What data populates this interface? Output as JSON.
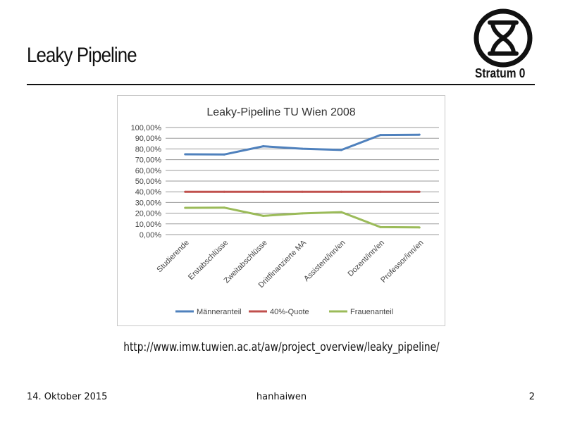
{
  "slide": {
    "title": "Leaky Pipeline",
    "url": "http://www.imw.tuwien.ac.at/aw/project_overview/leaky_pipeline/"
  },
  "logo": {
    "text": "Stratum 0"
  },
  "footer": {
    "date": "14. Oktober 2015",
    "author": "hanhaiwen",
    "page": "2"
  },
  "chart_data": {
    "type": "line",
    "title": "Leaky-Pipeline TU Wien 2008",
    "categories": [
      "Studierende",
      "Erstabschlüsse",
      "Zweitabschlüsse",
      "Drittfinanzierte MA",
      "Assistent/inn/en",
      "Dozent/inn/en",
      "Professor/inn/en"
    ],
    "y_ticks": [
      "0,00%",
      "10,00%",
      "20,00%",
      "30,00%",
      "40,00%",
      "50,00%",
      "60,00%",
      "70,00%",
      "80,00%",
      "90,00%",
      "100,00%"
    ],
    "ylim": [
      0,
      100
    ],
    "grid": true,
    "legend_position": "bottom",
    "series": [
      {
        "name": "Männeranteil",
        "color": "#4f81bd",
        "values": [
          75,
          74.8,
          82.5,
          80.2,
          79,
          93,
          93.3
        ]
      },
      {
        "name": "40%-Quote",
        "color": "#c0504d",
        "values": [
          40,
          40,
          40,
          40,
          40,
          40,
          40
        ]
      },
      {
        "name": "Frauenanteil",
        "color": "#9bbb59",
        "values": [
          25,
          25.2,
          17.5,
          19.8,
          21,
          7,
          6.7
        ]
      }
    ]
  }
}
